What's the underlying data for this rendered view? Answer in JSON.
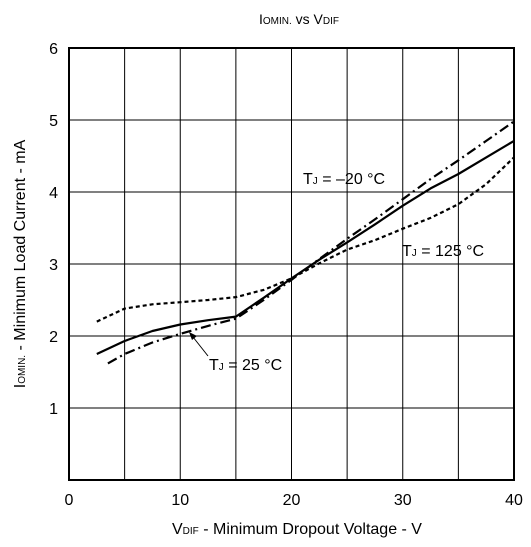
{
  "chart_data": {
    "type": "line",
    "title": {
      "main": "I",
      "main_sub": "OMIN.",
      "mid": " vs V",
      "end_sub": "DIF"
    },
    "xlabel": {
      "main": "V",
      "sub": "DIF",
      "rest": " - Minimum Dropout Voltage - V"
    },
    "ylabel": {
      "main": "I",
      "sub": "OMIN.",
      "rest": " - Minimum Load Current - mA"
    },
    "xlim": [
      0,
      40
    ],
    "ylim": [
      0,
      6
    ],
    "x_ticks": [
      0,
      10,
      20,
      30,
      40
    ],
    "y_ticks": [
      1,
      2,
      3,
      4,
      5,
      6
    ],
    "x_grid_step": 5,
    "y_grid_step": 1,
    "grid": true,
    "series": [
      {
        "name": "TJ = 25 °C",
        "style": "solid",
        "x": [
          2.5,
          5,
          7.5,
          10,
          12.5,
          15,
          17.5,
          20,
          22.5,
          25,
          27.5,
          30,
          32.5,
          35,
          37.5,
          40
        ],
        "y": [
          1.75,
          1.93,
          2.07,
          2.16,
          2.22,
          2.27,
          2.53,
          2.8,
          3.06,
          3.3,
          3.55,
          3.81,
          4.05,
          4.25,
          4.48,
          4.71
        ]
      },
      {
        "name": "TJ = –20 °C",
        "style": "dashdot",
        "x": [
          3.5,
          5,
          7.5,
          10,
          12.5,
          15,
          17.5,
          20,
          22.5,
          25,
          27.5,
          30,
          32.5,
          35,
          37.5,
          40
        ],
        "y": [
          1.62,
          1.75,
          1.91,
          2.03,
          2.14,
          2.24,
          2.5,
          2.78,
          3.07,
          3.35,
          3.62,
          3.9,
          4.18,
          4.44,
          4.71,
          4.98
        ]
      },
      {
        "name": "TJ = 125 °C",
        "style": "dotted",
        "x": [
          2.5,
          5,
          7.5,
          10,
          12.5,
          15,
          17.5,
          20,
          22.5,
          25,
          27.5,
          30,
          32.5,
          35,
          37.5,
          40
        ],
        "y": [
          2.2,
          2.38,
          2.44,
          2.47,
          2.5,
          2.54,
          2.64,
          2.8,
          3.01,
          3.2,
          3.33,
          3.49,
          3.64,
          3.83,
          4.11,
          4.48
        ]
      }
    ],
    "annotations": [
      {
        "series": 1,
        "main": "T",
        "sub": "J",
        "rest": " = –20 °C"
      },
      {
        "series": 2,
        "main": "T",
        "sub": "J",
        "rest": " = 125 °C"
      },
      {
        "series": 0,
        "main": "T",
        "sub": "J",
        "rest": " = 25 °C"
      }
    ]
  }
}
